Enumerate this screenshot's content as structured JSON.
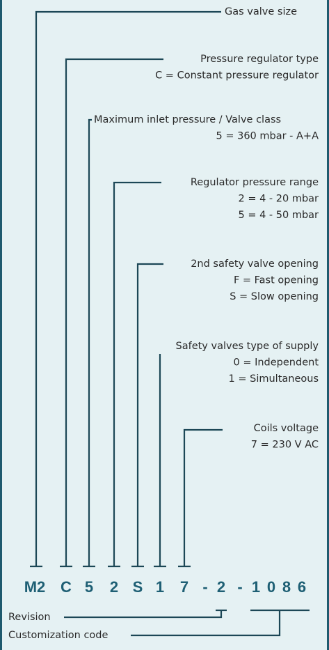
{
  "code": [
    "M2",
    "C",
    "5",
    "2",
    "S",
    "1",
    "7",
    "-",
    "2",
    "-",
    "1",
    "0",
    "8",
    "6"
  ],
  "callouts": [
    {
      "title": "Gas valve size",
      "lines": []
    },
    {
      "title": "Pressure regulator type",
      "lines": [
        "C = Constant pressure regulator"
      ]
    },
    {
      "title": "Maximum inlet pressure / Valve class",
      "lines": [
        "5 = 360 mbar - A+A"
      ]
    },
    {
      "title": "Regulator pressure range",
      "lines": [
        "2 = 4 - 20 mbar",
        "5 = 4 - 50 mbar"
      ]
    },
    {
      "title": "2nd safety valve opening",
      "lines": [
        "F =  Fast opening",
        "S = Slow opening"
      ]
    },
    {
      "title": "Safety valves type of supply",
      "lines": [
        "0 = Independent",
        "1 = Simultaneous"
      ]
    },
    {
      "title": "Coils voltage",
      "lines": [
        "7 = 230 V AC"
      ]
    }
  ],
  "bottom": [
    {
      "title": "Revision"
    },
    {
      "title": "Customization code"
    }
  ]
}
